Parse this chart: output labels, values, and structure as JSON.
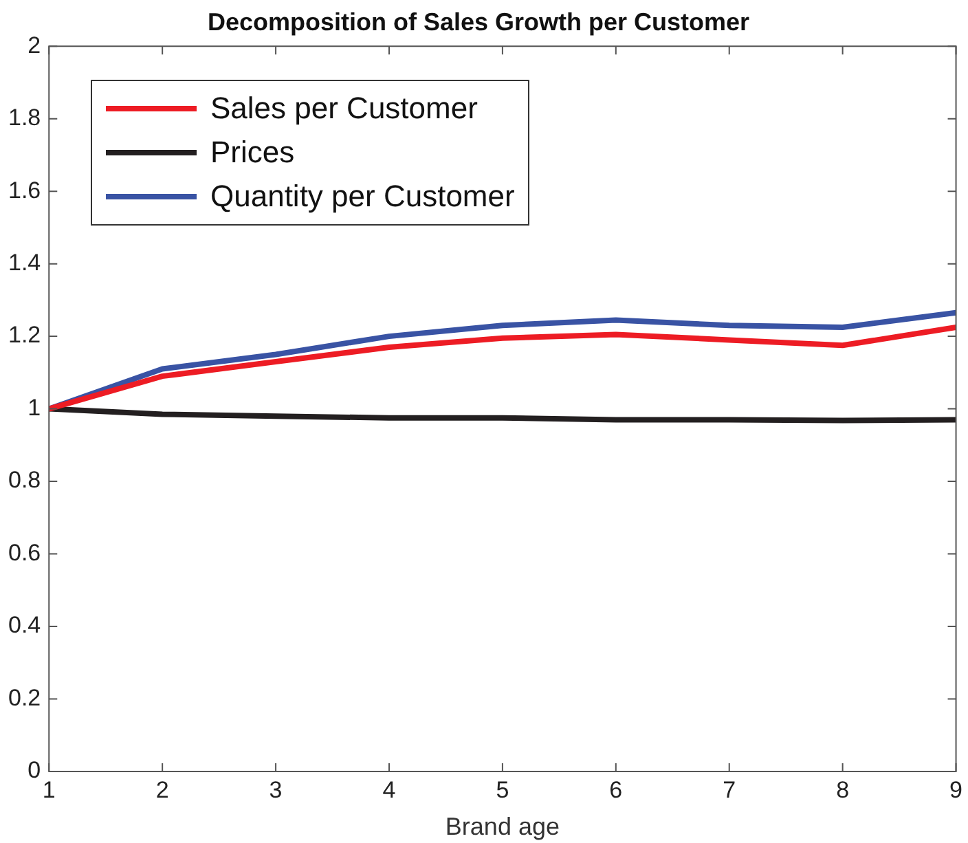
{
  "chart_data": {
    "type": "line",
    "title": "Decomposition of Sales Growth per Customer",
    "xlabel": "Brand age",
    "x": [
      1,
      2,
      3,
      4,
      5,
      6,
      7,
      8,
      9
    ],
    "xlim": [
      1,
      9
    ],
    "xticks": [
      1,
      2,
      3,
      4,
      5,
      6,
      7,
      8,
      9
    ],
    "ylim": [
      0,
      2
    ],
    "yticks": [
      0,
      0.2,
      0.4,
      0.6,
      0.8,
      1,
      1.2,
      1.4,
      1.6,
      1.8,
      2
    ],
    "series": [
      {
        "name": "Sales per Customer",
        "color": "#ed1c24",
        "values": [
          1,
          1.09,
          1.13,
          1.17,
          1.195,
          1.205,
          1.19,
          1.175,
          1.225
        ]
      },
      {
        "name": "Prices",
        "color": "#231f20",
        "values": [
          1,
          0.985,
          0.98,
          0.975,
          0.975,
          0.97,
          0.97,
          0.968,
          0.97
        ]
      },
      {
        "name": "Quantity per Customer",
        "color": "#3953a4",
        "values": [
          1,
          1.11,
          1.15,
          1.2,
          1.23,
          1.245,
          1.23,
          1.225,
          1.265
        ]
      }
    ],
    "grid": false,
    "legend": "top left",
    "marker": "none",
    "line_style": "solid"
  }
}
